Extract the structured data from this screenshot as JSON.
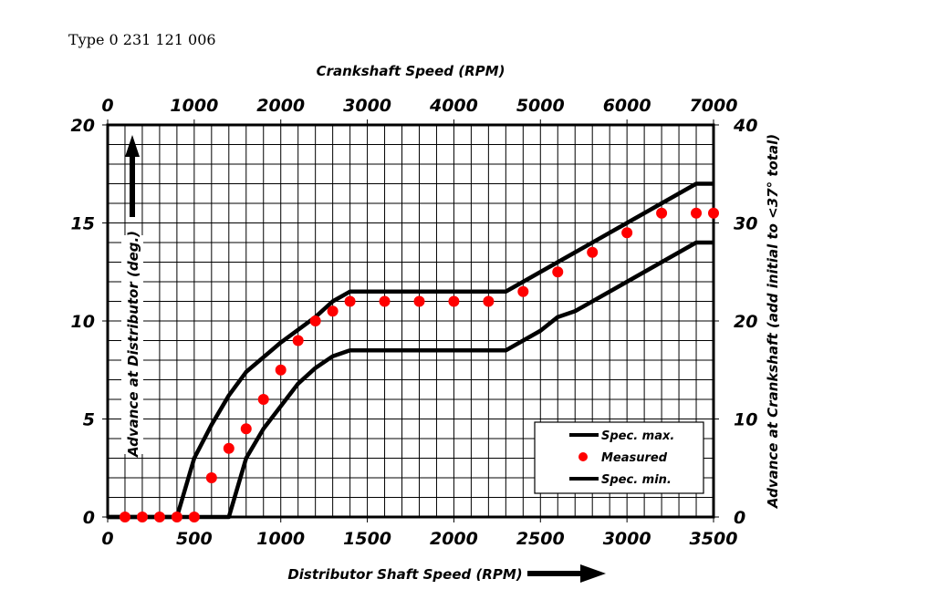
{
  "title": "Type 0 231 121 006",
  "chart_data": {
    "type": "line",
    "title": "Type 0 231 121 006",
    "xlabel": "Distributor Shaft Speed (RPM)",
    "x2label": "Crankshaft Speed (RPM)",
    "ylabel": "Advance at Distributor (deg.)",
    "y2label": "Advance at Crankshaft (add initial to <37° total)",
    "xlim": [
      0,
      3500
    ],
    "ylim": [
      0,
      20
    ],
    "x2lim": [
      0,
      7000
    ],
    "y2lim": [
      0,
      40
    ],
    "xticks": [
      "0",
      "500",
      "1000",
      "1500",
      "2000",
      "2500",
      "3000",
      "3500"
    ],
    "yticks": [
      "0",
      "5",
      "10",
      "15",
      "20"
    ],
    "x2ticks": [
      "0",
      "1000",
      "2000",
      "3000",
      "4000",
      "5000",
      "6000",
      "7000"
    ],
    "y2ticks": [
      "0",
      "10",
      "20",
      "30",
      "40"
    ],
    "grid": true,
    "legend_position": "bottom-right",
    "series": [
      {
        "name": "Spec. max.",
        "style": "line",
        "color": "#000000",
        "x": [
          0,
          400,
          500,
          600,
          700,
          800,
          1000,
          1200,
          1300,
          1400,
          2300,
          2500,
          2700,
          3000,
          3400,
          3500
        ],
        "y": [
          0,
          0,
          3,
          4.7,
          6.2,
          7.4,
          8.9,
          10.2,
          11,
          11.5,
          11.5,
          12.5,
          13.5,
          15,
          17,
          17
        ]
      },
      {
        "name": "Measured",
        "style": "scatter",
        "color": "#ff0000",
        "x": [
          100,
          200,
          300,
          400,
          500,
          600,
          700,
          800,
          900,
          1000,
          1100,
          1200,
          1300,
          1400,
          1600,
          1800,
          2000,
          2200,
          2400,
          2600,
          2800,
          3000,
          3200,
          3400,
          3500
        ],
        "y": [
          0,
          0,
          0,
          0,
          0,
          2,
          3.5,
          4.5,
          6,
          7.5,
          9,
          10,
          10.5,
          11,
          11,
          11,
          11,
          11,
          11.5,
          12.5,
          13.5,
          14.5,
          15.5,
          15.5,
          15.5
        ]
      },
      {
        "name": "Spec. min.",
        "style": "line",
        "color": "#000000",
        "x": [
          0,
          700,
          800,
          900,
          1100,
          1200,
          1300,
          1400,
          2300,
          2500,
          2600,
          2700,
          3000,
          3400,
          3500
        ],
        "y": [
          0,
          0,
          3,
          4.5,
          6.8,
          7.6,
          8.2,
          8.5,
          8.5,
          9.5,
          10.2,
          10.5,
          12,
          14,
          14
        ]
      }
    ]
  }
}
